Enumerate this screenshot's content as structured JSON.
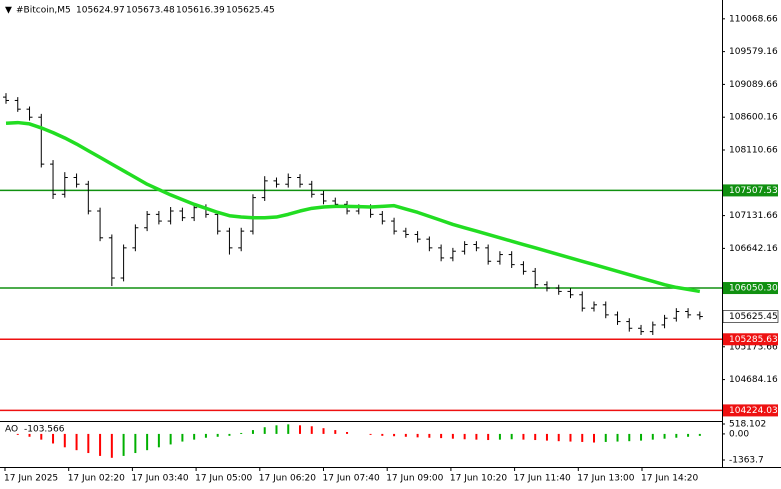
{
  "chart_data": {
    "type": "ohlc",
    "symbol": "#Bitcoin,M5",
    "quote": [
      105624.97,
      105673.48,
      105616.39,
      105625.45
    ],
    "ylim": [
      104080.9,
      110349.4
    ],
    "yticks": [
      110068.66,
      109579.16,
      109089.66,
      108600.16,
      108110.66,
      107131.66,
      106642.16,
      105173.66,
      104684.16
    ],
    "bar_color": "#000000",
    "candles": [
      [
        108900,
        108960,
        108800,
        108850
      ],
      [
        108850,
        108900,
        108680,
        108720
      ],
      [
        108720,
        108760,
        108550,
        108600
      ],
      [
        108600,
        108650,
        107850,
        107900
      ],
      [
        107900,
        107960,
        107380,
        107450
      ],
      [
        107450,
        107780,
        107400,
        107700
      ],
      [
        107700,
        107760,
        107550,
        107600
      ],
      [
        107600,
        107650,
        107150,
        107200
      ],
      [
        107200,
        107250,
        106750,
        106800
      ],
      [
        106800,
        106850,
        106080,
        106200
      ],
      [
        106200,
        106700,
        106150,
        106650
      ],
      [
        106650,
        107000,
        106600,
        106950
      ],
      [
        106950,
        107200,
        106900,
        107150
      ],
      [
        107150,
        107200,
        107000,
        107050
      ],
      [
        107050,
        107260,
        107000,
        107200
      ],
      [
        107200,
        107250,
        107050,
        107100
      ],
      [
        107100,
        107300,
        107050,
        107250
      ],
      [
        107250,
        107300,
        107100,
        107150
      ],
      [
        107150,
        107200,
        106850,
        106900
      ],
      [
        106900,
        106950,
        106550,
        106650
      ],
      [
        106650,
        106950,
        106600,
        106900
      ],
      [
        106900,
        107450,
        106850,
        107400
      ],
      [
        107400,
        107720,
        107350,
        107650
      ],
      [
        107650,
        107700,
        107550,
        107600
      ],
      [
        107600,
        107760,
        107550,
        107700
      ],
      [
        107700,
        107750,
        107550,
        107600
      ],
      [
        107600,
        107650,
        107400,
        107450
      ],
      [
        107450,
        107500,
        107300,
        107350
      ],
      [
        107350,
        107400,
        107250,
        107300
      ],
      [
        107300,
        107350,
        107150,
        107200
      ],
      [
        107200,
        107300,
        107150,
        107250
      ],
      [
        107250,
        107300,
        107100,
        107150
      ],
      [
        107150,
        107200,
        107000,
        107050
      ],
      [
        107050,
        107100,
        106850,
        106900
      ],
      [
        106900,
        106950,
        106800,
        106850
      ],
      [
        106850,
        106900,
        106730,
        106780
      ],
      [
        106780,
        106820,
        106600,
        106650
      ],
      [
        106650,
        106700,
        106450,
        106500
      ],
      [
        106500,
        106650,
        106450,
        106600
      ],
      [
        106600,
        106750,
        106550,
        106700
      ],
      [
        106700,
        106750,
        106600,
        106650
      ],
      [
        106650,
        106700,
        106400,
        106450
      ],
      [
        106450,
        106600,
        106400,
        106550
      ],
      [
        106550,
        106600,
        106350,
        106400
      ],
      [
        106400,
        106450,
        106250,
        106300
      ],
      [
        106300,
        106350,
        106050,
        106100
      ],
      [
        106100,
        106150,
        106000,
        106050
      ],
      [
        106050,
        106100,
        105950,
        106000
      ],
      [
        106000,
        106050,
        105900,
        105950
      ],
      [
        105950,
        106000,
        105700,
        105750
      ],
      [
        105750,
        105850,
        105700,
        105800
      ],
      [
        105800,
        105850,
        105600,
        105650
      ],
      [
        105650,
        105700,
        105500,
        105550
      ],
      [
        105550,
        105600,
        105400,
        105450
      ],
      [
        105450,
        105500,
        105350,
        105400
      ],
      [
        105400,
        105550,
        105350,
        105500
      ],
      [
        105500,
        105650,
        105450,
        105600
      ],
      [
        105600,
        105750,
        105550,
        105700
      ],
      [
        105700,
        105750,
        105600,
        105650
      ],
      [
        105650,
        105700,
        105580,
        105625
      ]
    ],
    "ma": {
      "color": "#22dd22",
      "values": [
        108510,
        108520,
        108500,
        108440,
        108370,
        108290,
        108200,
        108100,
        108000,
        107900,
        107800,
        107700,
        107600,
        107520,
        107440,
        107370,
        107300,
        107240,
        107180,
        107130,
        107110,
        107100,
        107100,
        107110,
        107150,
        107200,
        107240,
        107260,
        107270,
        107270,
        107265,
        107260,
        107270,
        107280,
        107230,
        107180,
        107120,
        107060,
        107000,
        106950,
        106900,
        106850,
        106800,
        106750,
        106700,
        106650,
        106600,
        106550,
        106500,
        106450,
        106400,
        106350,
        106300,
        106250,
        106200,
        106150,
        106100,
        106060,
        106030,
        106000
      ]
    },
    "levels": [
      {
        "value": 107507.53,
        "color": "#109010"
      },
      {
        "value": 106050.3,
        "label": "106050.30",
        "color": "#109010"
      },
      {
        "value": 105285.63,
        "color": "#ee1111"
      },
      {
        "value": 104224.03,
        "color": "#ee1111"
      }
    ],
    "current_price": 105625.45,
    "x_labels": [
      "17 Jun 2025",
      "17 Jun 02:20",
      "17 Jun 03:40",
      "17 Jun 05:00",
      "17 Jun 06:20",
      "17 Jun 07:40",
      "17 Jun 09:00",
      "17 Jun 10:20",
      "17 Jun 11:40",
      "17 Jun 13:00",
      "17 Jun 14:20"
    ],
    "ao": {
      "name": "AO",
      "up_color": "#00b000",
      "down_color": "#ff0000",
      "ylim": [
        -1363.7,
        518.102
      ],
      "yticks": [
        518.102,
        {
          "value": 0,
          "label": "0.00"
        },
        -1363.7
      ],
      "values": [
        0,
        -50,
        -150,
        -300,
        -500,
        -700,
        -850,
        -1000,
        -1150,
        -1250,
        -1150,
        -1000,
        -850,
        -700,
        -550,
        -400,
        -300,
        -200,
        -150,
        -100,
        50,
        200,
        350,
        450,
        500,
        450,
        400,
        300,
        200,
        100,
        0,
        -50,
        -100,
        -120,
        -150,
        -180,
        -200,
        -220,
        -250,
        -280,
        -300,
        -320,
        -300,
        -280,
        -300,
        -320,
        -350,
        -380,
        -400,
        -420,
        -450,
        -420,
        -400,
        -380,
        -350,
        -300,
        -250,
        -200,
        -150,
        -103.566
      ]
    }
  }
}
